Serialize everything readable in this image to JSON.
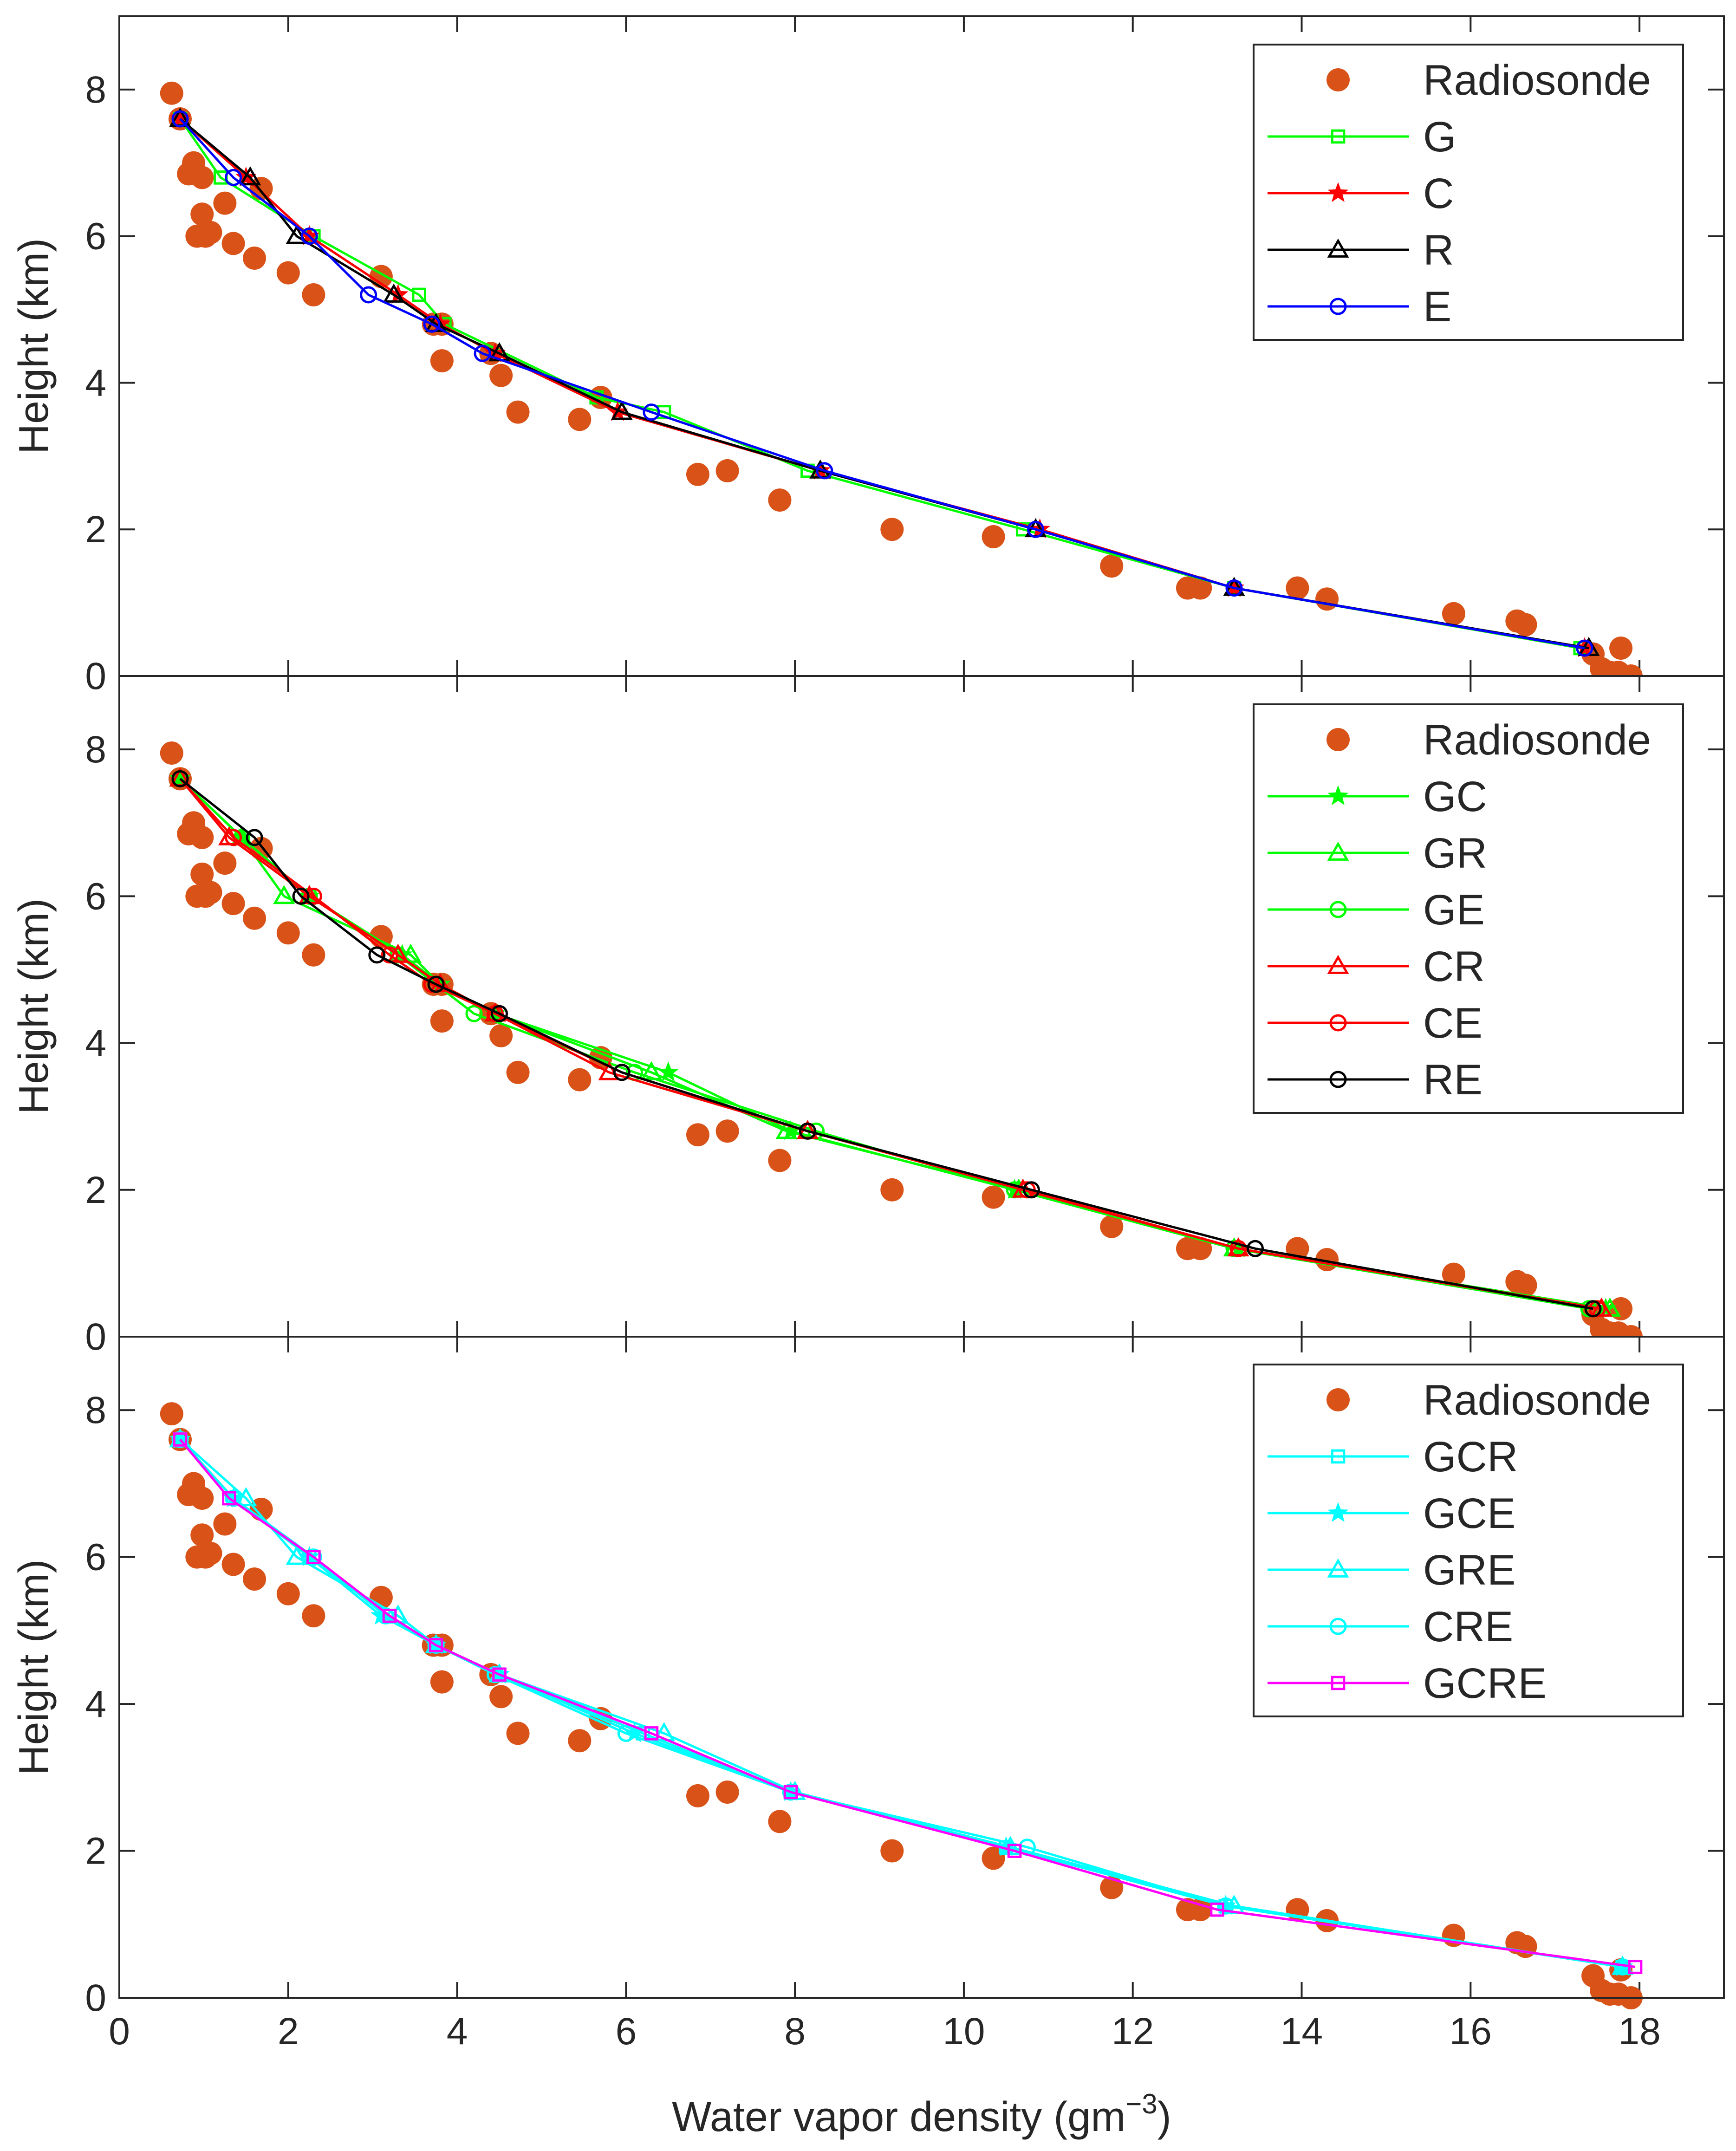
{
  "colors": {
    "radiosonde": "#D95319",
    "G": "#00FF00",
    "C": "#FF0000",
    "R": "#000000",
    "E": "#0000FF",
    "GC": "#00FF00",
    "GR": "#00FF00",
    "GE": "#00FF00",
    "CR": "#FF0000",
    "CE": "#FF0000",
    "RE": "#000000",
    "GCR": "#00FFFF",
    "GCE": "#00FFFF",
    "GRE": "#00FFFF",
    "CRE": "#00FFFF",
    "GCRE": "#FF00FF"
  },
  "chart_data": [
    {
      "type": "line",
      "ylabel": "Height (km)",
      "xlim": [
        0,
        19
      ],
      "ylim": [
        0,
        9
      ],
      "xticks": [
        0,
        2,
        4,
        6,
        8,
        10,
        12,
        14,
        16,
        18
      ],
      "yticks": [
        "0",
        "2",
        "4",
        "6",
        "8"
      ],
      "legend_position": "top-right",
      "series": [
        {
          "name": "Radiosonde",
          "marker": "filled-circle",
          "x": [
            0.62,
            0.72,
            0.82,
            0.88,
            0.92,
            0.98,
            0.98,
            1.02,
            1.08,
            1.25,
            1.35,
            1.6,
            1.68,
            2.0,
            2.3,
            3.1,
            3.72,
            3.82,
            3.82,
            4.4,
            4.52,
            4.72,
            5.45,
            5.7,
            6.85,
            7.2,
            7.82,
            9.15,
            10.35,
            11.75,
            12.65,
            12.8,
            13.95,
            14.3,
            15.8,
            16.55,
            16.65,
            17.45,
            17.55,
            17.65,
            17.75,
            17.78,
            17.9
          ],
          "y": [
            7.95,
            7.6,
            6.85,
            7.0,
            6.0,
            6.8,
            6.3,
            6.0,
            6.05,
            6.45,
            5.9,
            5.7,
            6.65,
            5.5,
            5.2,
            5.45,
            4.8,
            4.8,
            4.3,
            4.4,
            4.1,
            3.6,
            3.5,
            3.8,
            2.75,
            2.8,
            2.4,
            2.0,
            1.9,
            1.5,
            1.2,
            1.2,
            1.2,
            1.05,
            0.85,
            0.75,
            0.7,
            0.3,
            0.1,
            0.05,
            0.05,
            0.38,
            0.0
          ]
        },
        {
          "name": "G",
          "marker": "square",
          "x": [
            0.72,
            1.2,
            2.3,
            3.55,
            3.85,
            5.65,
            6.45,
            8.15,
            10.7,
            13.2,
            17.3
          ],
          "y": [
            7.6,
            6.8,
            6.0,
            5.2,
            4.8,
            3.8,
            3.6,
            2.8,
            2.0,
            1.2,
            0.38
          ]
        },
        {
          "name": "C",
          "marker": "star",
          "x": [
            0.72,
            1.5,
            2.25,
            3.3,
            3.8,
            4.45,
            5.9,
            8.3,
            10.9,
            13.2,
            17.35
          ],
          "y": [
            7.6,
            6.8,
            6.0,
            5.2,
            4.8,
            4.4,
            3.6,
            2.8,
            2.0,
            1.2,
            0.38
          ]
        },
        {
          "name": "R",
          "marker": "triangle",
          "x": [
            0.72,
            1.55,
            2.1,
            3.25,
            3.75,
            4.5,
            5.95,
            8.3,
            10.85,
            13.2,
            17.4
          ],
          "y": [
            7.6,
            6.8,
            6.0,
            5.2,
            4.8,
            4.4,
            3.6,
            2.8,
            2.0,
            1.2,
            0.38
          ]
        },
        {
          "name": "E",
          "marker": "circle",
          "x": [
            0.72,
            1.35,
            2.25,
            2.95,
            3.7,
            4.3,
            6.3,
            8.35,
            10.85,
            13.2,
            17.35
          ],
          "y": [
            7.6,
            6.8,
            6.0,
            5.2,
            4.8,
            4.4,
            3.6,
            2.8,
            2.0,
            1.2,
            0.38
          ]
        }
      ]
    },
    {
      "type": "line",
      "ylabel": "Height (km)",
      "xlim": [
        0,
        19
      ],
      "ylim": [
        0,
        9
      ],
      "xticks": [
        0,
        2,
        4,
        6,
        8,
        10,
        12,
        14,
        16,
        18
      ],
      "yticks": [
        "0",
        "2",
        "4",
        "6",
        "8"
      ],
      "legend_position": "top-right",
      "series": [
        {
          "name": "Radiosonde",
          "marker": "filled-circle",
          "x": [
            0.62,
            0.72,
            0.82,
            0.88,
            0.92,
            0.98,
            0.98,
            1.02,
            1.08,
            1.25,
            1.35,
            1.6,
            1.68,
            2.0,
            2.3,
            3.1,
            3.72,
            3.82,
            3.82,
            4.4,
            4.52,
            4.72,
            5.45,
            5.7,
            6.85,
            7.2,
            7.82,
            9.15,
            10.35,
            11.75,
            12.65,
            12.8,
            13.95,
            14.3,
            15.8,
            16.55,
            16.65,
            17.45,
            17.55,
            17.65,
            17.75,
            17.78,
            17.9
          ],
          "y": [
            7.95,
            7.6,
            6.85,
            7.0,
            6.0,
            6.8,
            6.3,
            6.0,
            6.05,
            6.45,
            5.9,
            5.7,
            6.65,
            5.5,
            5.2,
            5.45,
            4.8,
            4.8,
            4.3,
            4.4,
            4.1,
            3.6,
            3.5,
            3.8,
            2.75,
            2.8,
            2.4,
            2.0,
            1.9,
            1.5,
            1.2,
            1.2,
            1.2,
            1.05,
            0.85,
            0.75,
            0.7,
            0.3,
            0.1,
            0.05,
            0.05,
            0.38,
            0.0
          ]
        },
        {
          "name": "GC",
          "marker": "star",
          "x": [
            0.72,
            1.45,
            2.25,
            3.35,
            3.8,
            4.45,
            6.5,
            7.95,
            10.6,
            13.25,
            17.6
          ],
          "y": [
            7.6,
            6.8,
            6.0,
            5.2,
            4.8,
            4.4,
            3.6,
            2.8,
            2.0,
            1.2,
            0.38
          ]
        },
        {
          "name": "GR",
          "marker": "triangle",
          "x": [
            0.72,
            1.45,
            1.95,
            3.45,
            3.8,
            4.45,
            6.3,
            7.9,
            10.65,
            13.2,
            17.65
          ],
          "y": [
            7.6,
            6.8,
            6.0,
            5.2,
            4.8,
            4.4,
            3.6,
            2.8,
            2.0,
            1.2,
            0.38
          ]
        },
        {
          "name": "GE",
          "marker": "circle",
          "x": [
            0.72,
            1.45,
            2.25,
            3.3,
            3.75,
            4.2,
            6.1,
            8.25,
            10.6,
            13.2,
            17.4
          ],
          "y": [
            7.6,
            6.8,
            6.0,
            5.2,
            4.8,
            4.4,
            3.6,
            2.8,
            2.0,
            1.2,
            0.38
          ]
        },
        {
          "name": "CR",
          "marker": "triangle",
          "x": [
            0.72,
            1.3,
            2.25,
            3.3,
            3.8,
            4.45,
            5.8,
            8.15,
            10.7,
            13.25,
            17.55
          ],
          "y": [
            7.6,
            6.8,
            6.0,
            5.2,
            4.8,
            4.4,
            3.6,
            2.8,
            2.0,
            1.2,
            0.38
          ]
        },
        {
          "name": "CE",
          "marker": "circle",
          "x": [
            0.72,
            1.35,
            2.3,
            3.2,
            3.7,
            4.45,
            5.95,
            8.15,
            10.75,
            13.25,
            17.5
          ],
          "y": [
            7.6,
            6.8,
            6.0,
            5.2,
            4.8,
            4.4,
            3.6,
            2.8,
            2.0,
            1.2,
            0.38
          ]
        },
        {
          "name": "RE",
          "marker": "circle",
          "x": [
            0.72,
            1.6,
            2.15,
            3.05,
            3.75,
            4.5,
            5.95,
            8.15,
            10.8,
            13.45,
            17.45
          ],
          "y": [
            7.6,
            6.8,
            6.0,
            5.2,
            4.8,
            4.4,
            3.6,
            2.8,
            2.0,
            1.2,
            0.38
          ]
        }
      ]
    },
    {
      "type": "line",
      "xlabel": "Water vapor density (gm",
      "xlabel_sup": "−3",
      "xlabel_end": ")",
      "ylabel": "Height (km)",
      "xlim": [
        0,
        19
      ],
      "ylim": [
        0,
        9
      ],
      "xticks": [
        "0",
        "2",
        "4",
        "6",
        "8",
        "10",
        "12",
        "14",
        "16",
        "18"
      ],
      "yticks": [
        "0",
        "2",
        "4",
        "6",
        "8"
      ],
      "legend_position": "top-right",
      "series": [
        {
          "name": "Radiosonde",
          "marker": "filled-circle",
          "x": [
            0.62,
            0.72,
            0.82,
            0.88,
            0.92,
            0.98,
            0.98,
            1.02,
            1.08,
            1.25,
            1.35,
            1.6,
            1.68,
            2.0,
            2.3,
            3.1,
            3.72,
            3.82,
            3.82,
            4.4,
            4.52,
            4.72,
            5.45,
            5.7,
            6.85,
            7.2,
            7.82,
            9.15,
            10.35,
            11.75,
            12.65,
            12.8,
            13.95,
            14.3,
            15.8,
            16.55,
            16.65,
            17.45,
            17.55,
            17.65,
            17.75,
            17.78,
            17.9
          ],
          "y": [
            7.95,
            7.6,
            6.85,
            7.0,
            6.0,
            6.8,
            6.3,
            6.0,
            6.05,
            6.45,
            5.9,
            5.7,
            6.65,
            5.5,
            5.2,
            5.45,
            4.8,
            4.8,
            4.3,
            4.4,
            4.1,
            3.6,
            3.5,
            3.8,
            2.75,
            2.8,
            2.4,
            2.0,
            1.9,
            1.5,
            1.2,
            1.2,
            1.2,
            1.05,
            0.85,
            0.75,
            0.7,
            0.3,
            0.1,
            0.05,
            0.05,
            0.38,
            0.0
          ]
        },
        {
          "name": "GCR",
          "marker": "square",
          "x": [
            0.72,
            1.35,
            2.25,
            3.2,
            3.75,
            4.5,
            6.2,
            7.95,
            10.5,
            13.1,
            17.8
          ],
          "y": [
            7.6,
            6.8,
            6.0,
            5.2,
            4.8,
            4.4,
            3.6,
            2.8,
            2.05,
            1.25,
            0.42
          ]
        },
        {
          "name": "GCE",
          "marker": "star",
          "x": [
            0.72,
            1.35,
            2.25,
            3.1,
            3.75,
            4.5,
            6.1,
            7.95,
            10.5,
            13.1,
            17.8
          ],
          "y": [
            7.6,
            6.8,
            6.0,
            5.2,
            4.8,
            4.4,
            3.6,
            2.8,
            2.05,
            1.25,
            0.42
          ]
        },
        {
          "name": "GRE",
          "marker": "triangle",
          "x": [
            0.72,
            1.5,
            2.1,
            3.3,
            3.75,
            4.5,
            6.45,
            8.0,
            10.55,
            13.2,
            17.8
          ],
          "y": [
            7.6,
            6.8,
            6.0,
            5.2,
            4.8,
            4.4,
            3.6,
            2.8,
            2.05,
            1.25,
            0.42
          ]
        },
        {
          "name": "CRE",
          "marker": "circle",
          "x": [
            0.72,
            1.35,
            2.3,
            3.15,
            3.75,
            4.45,
            6.0,
            7.95,
            10.75,
            13.1,
            17.8
          ],
          "y": [
            7.6,
            6.8,
            6.0,
            5.2,
            4.8,
            4.4,
            3.6,
            2.8,
            2.05,
            1.25,
            0.42
          ]
        },
        {
          "name": "GCRE",
          "marker": "square",
          "x": [
            0.72,
            1.3,
            2.3,
            3.2,
            3.75,
            4.5,
            6.3,
            7.95,
            10.6,
            13.0,
            17.95
          ],
          "y": [
            7.6,
            6.8,
            6.0,
            5.2,
            4.8,
            4.4,
            3.6,
            2.8,
            2.0,
            1.2,
            0.42
          ]
        }
      ]
    }
  ]
}
